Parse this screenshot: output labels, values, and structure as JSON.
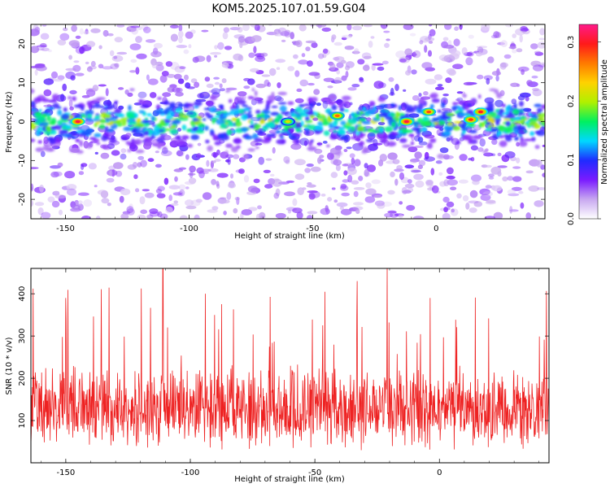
{
  "title": "KOM5.2025.107.01.59.G04",
  "chart_data": [
    {
      "type": "heatmap",
      "xlabel": "Height of straight line (km)",
      "ylabel": "Frequency (Hz)",
      "xlim": [
        -164,
        44
      ],
      "ylim": [
        -25,
        25
      ],
      "xticks": [
        -150,
        -100,
        -50,
        0
      ],
      "yticks": [
        -20,
        -10,
        0,
        10,
        20
      ],
      "xtick_labels": [
        "-150",
        "-100",
        "-50",
        "0"
      ],
      "ytick_labels": [
        "-20",
        "-10",
        "0",
        "10",
        "20"
      ],
      "colorbar": {
        "label": "Normalized spectral amplitude",
        "range": [
          0.0,
          0.33
        ],
        "ticks": [
          0.0,
          0.1,
          0.2,
          0.3
        ],
        "tick_labels": [
          "0.0",
          "0.1",
          "0.2",
          "0.3"
        ],
        "colors": [
          "#ffffff",
          "#c8a8f0",
          "#7a1bff",
          "#1f2bff",
          "#00d8ff",
          "#00f060",
          "#b0f000",
          "#ffd200",
          "#ff7a00",
          "#ff1a1a",
          "#ff1a8a"
        ]
      },
      "band": {
        "center_hz": 0,
        "half_width_hz": 6
      },
      "hotspots": [
        {
          "x": -145,
          "y": 0,
          "value": 0.31
        },
        {
          "x": -60,
          "y": 0,
          "value": 0.22
        },
        {
          "x": -40,
          "y": 1.5,
          "value": 0.27
        },
        {
          "x": -12,
          "y": 0,
          "value": 0.31
        },
        {
          "x": -3,
          "y": 2.5,
          "value": 0.28
        },
        {
          "x": 14,
          "y": 0.5,
          "value": 0.29
        },
        {
          "x": 18,
          "y": 2.5,
          "value": 0.3
        }
      ]
    },
    {
      "type": "line",
      "xlabel": "Height of straight line (km)",
      "ylabel": "SNR (10 * v/v)",
      "xlim": [
        -164,
        44
      ],
      "ylim": [
        0,
        460
      ],
      "xticks": [
        -150,
        -100,
        -50,
        0
      ],
      "yticks": [
        100,
        200,
        300,
        400
      ],
      "xtick_labels": [
        "-150",
        "-100",
        "-50",
        "0"
      ],
      "ytick_labels": [
        "100",
        "200",
        "300",
        "400"
      ],
      "series": [
        {
          "color": "#ee2222",
          "mean": 130,
          "spread": 70,
          "peaks": [
            {
              "x": -111,
              "y": 460
            },
            {
              "x": -21,
              "y": 460
            },
            {
              "x": -150,
              "y": 390
            },
            {
              "x": -94,
              "y": 400
            },
            {
              "x": -33,
              "y": 430
            }
          ]
        }
      ]
    }
  ]
}
